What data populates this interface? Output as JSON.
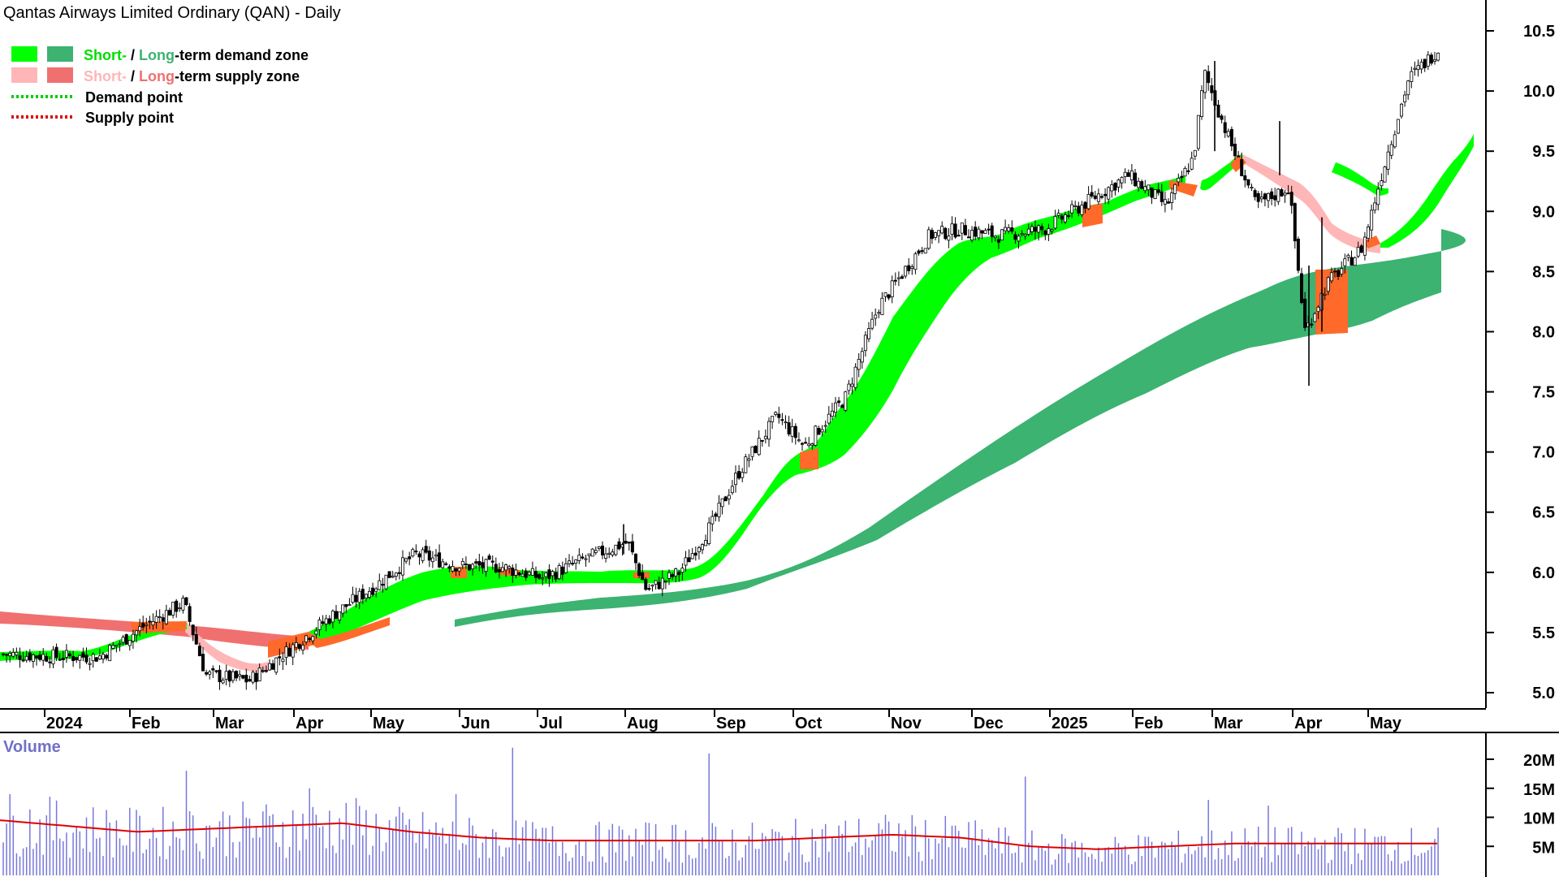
{
  "title": "Qantas Airways Limited Ordinary (QAN) - Daily",
  "legend": {
    "demand_short": "Short-",
    "demand_sep": " / ",
    "demand_long": "Long",
    "demand_rest": "-term demand zone",
    "supply_short": "Short-",
    "supply_sep": " / ",
    "supply_long": "Long",
    "supply_rest": "-term supply zone",
    "demand_point": "Demand point",
    "supply_point": "Supply point"
  },
  "colors": {
    "short_demand": "#00ff00",
    "long_demand": "#3cb371",
    "short_supply": "#ffb6b6",
    "long_supply": "#f07070",
    "conflict": "#ff6a2a",
    "volume_bar": "#7777dd",
    "volume_ma": "#e00000"
  },
  "chart_data": {
    "type": "candlestick",
    "title": "Qantas Airways Limited Ordinary (QAN) - Daily",
    "ylim": [
      4.8,
      10.6
    ],
    "y_ticks": [
      "10.5",
      "10.0",
      "9.5",
      "9.0",
      "8.5",
      "8.0",
      "7.5",
      "7.0",
      "6.5",
      "6.0",
      "5.5",
      "5.0"
    ],
    "x_ticks": [
      "2024",
      "Feb",
      "Mar",
      "Apr",
      "May",
      "Jun",
      "Jul",
      "Aug",
      "Sep",
      "Oct",
      "Nov",
      "Dec",
      "2025",
      "Feb",
      "Mar",
      "Apr",
      "May"
    ],
    "price_close_path": [
      [
        "2023-12-15",
        5.32
      ],
      [
        "2024-01-05",
        5.3
      ],
      [
        "2024-01-20",
        5.3
      ],
      [
        "2024-02-05",
        5.55
      ],
      [
        "2024-02-20",
        5.75
      ],
      [
        "2024-02-28",
        5.15
      ],
      [
        "2024-03-15",
        5.1
      ],
      [
        "2024-04-01",
        5.4
      ],
      [
        "2024-04-15",
        5.65
      ],
      [
        "2024-05-01",
        5.9
      ],
      [
        "2024-05-15",
        6.15
      ],
      [
        "2024-06-01",
        6.05
      ],
      [
        "2024-06-15",
        6.05
      ],
      [
        "2024-07-01",
        5.95
      ],
      [
        "2024-07-15",
        6.1
      ],
      [
        "2024-08-01",
        6.25
      ],
      [
        "2024-08-08",
        5.85
      ],
      [
        "2024-08-20",
        6.0
      ],
      [
        "2024-09-01",
        6.4
      ],
      [
        "2024-09-10",
        6.8
      ],
      [
        "2024-09-25",
        7.3
      ],
      [
        "2024-10-05",
        7.05
      ],
      [
        "2024-10-20",
        7.45
      ],
      [
        "2024-11-01",
        8.2
      ],
      [
        "2024-11-20",
        8.8
      ],
      [
        "2024-12-01",
        8.85
      ],
      [
        "2024-12-15",
        8.8
      ],
      [
        "2025-01-01",
        8.85
      ],
      [
        "2025-01-15",
        9.05
      ],
      [
        "2025-02-01",
        9.3
      ],
      [
        "2025-02-15",
        9.05
      ],
      [
        "2025-02-25",
        9.45
      ],
      [
        "2025-03-01",
        10.15
      ],
      [
        "2025-03-10",
        9.6
      ],
      [
        "2025-03-20",
        9.05
      ],
      [
        "2025-04-01",
        9.2
      ],
      [
        "2025-04-07",
        8.0
      ],
      [
        "2025-04-15",
        8.4
      ],
      [
        "2025-04-28",
        8.7
      ],
      [
        "2025-05-05",
        9.3
      ],
      [
        "2025-05-15",
        10.1
      ],
      [
        "2025-05-26",
        10.35
      ]
    ],
    "series": [
      {
        "name": "Short-term demand zone",
        "upper": [
          5.3,
          5.3,
          5.5,
          5.6,
          5.4,
          5.9,
          6.0,
          6.05,
          6.0,
          5.95,
          6.2,
          7.0,
          7.2,
          8.3,
          8.8,
          9.1,
          9.35,
          9.45,
          9.8
        ],
        "lower": [
          5.27,
          5.25,
          5.4,
          5.5,
          5.3,
          5.8,
          5.95,
          6.0,
          5.95,
          5.9,
          6.1,
          6.85,
          7.0,
          8.05,
          8.65,
          9.0,
          9.25,
          9.35,
          9.65
        ]
      },
      {
        "name": "Long-term demand zone",
        "upper": [
          5.4,
          5.55,
          5.68,
          5.72,
          5.8,
          6.15,
          6.5,
          7.1,
          7.6,
          8.0,
          8.35,
          8.45,
          8.85
        ],
        "lower": [
          5.4,
          5.5,
          5.63,
          5.66,
          5.7,
          5.95,
          6.2,
          6.7,
          7.2,
          7.6,
          7.95,
          8.05,
          8.3
        ]
      },
      {
        "name": "Short-term supply zone",
        "upper": [
          5.55,
          5.3,
          5.3,
          9.45,
          9.0,
          8.85
        ],
        "lower": [
          5.45,
          5.2,
          5.2,
          9.3,
          8.85,
          8.7
        ]
      },
      {
        "name": "Long-term supply zone",
        "upper": [
          5.65,
          5.6,
          5.55,
          5.5
        ],
        "lower": [
          5.55,
          5.48,
          5.43,
          5.4
        ]
      }
    ],
    "volume": {
      "label": "Volume",
      "y_ticks": [
        "20M",
        "15M",
        "10M",
        "5M"
      ],
      "ylim": [
        0,
        25
      ],
      "ma_values_m": [
        9.5,
        8.5,
        7.5,
        8.0,
        8.5,
        9.0,
        7.5,
        6.5,
        6.0,
        6.0,
        6.0,
        6.0,
        6.5,
        7.0,
        6.5,
        5.0,
        4.5,
        5.0,
        5.5,
        5.5,
        5.5,
        5.5
      ],
      "notable_spikes_m": [
        22,
        21,
        17,
        18,
        14,
        13,
        12
      ]
    }
  }
}
